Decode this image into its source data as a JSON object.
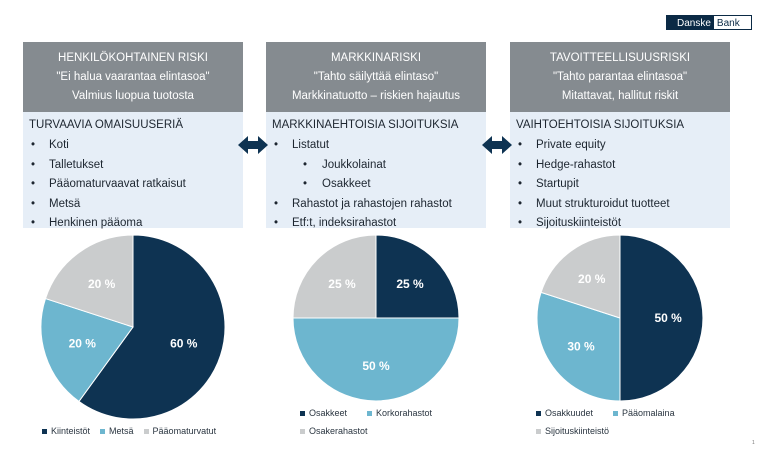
{
  "brand": {
    "name_part1": "Danske",
    "name_part2": "Bank"
  },
  "page_number": "1",
  "colors": {
    "navy": "#0e3352",
    "light_blue": "#6db6cf",
    "gray": "#cacccd",
    "header_gray": "#858b90",
    "box_bg": "#e6eef7"
  },
  "columns": [
    {
      "head": [
        "HENKILÖKOHTAINEN RISKI",
        "\"Ei halua vaarantaa elintasoa\"",
        "Valmius luopua tuotosta"
      ],
      "title": "TURVAAVIA OMAISUUSERIÄ",
      "items": [
        {
          "text": "Koti",
          "level": 1
        },
        {
          "text": "Talletukset",
          "level": 1
        },
        {
          "text": "Pääomaturvaavat ratkaisut",
          "level": 1
        },
        {
          "text": "Metsä",
          "level": 1
        },
        {
          "text": "Henkinen pääoma",
          "level": 1
        }
      ]
    },
    {
      "head": [
        "MARKKINARISKI",
        "\"Tahto säilyttää elintaso\"",
        "Markkinatuotto – riskien hajautus"
      ],
      "title": "MARKKINAEHTOISIA SIJOITUKSIA",
      "items": [
        {
          "text": "Listatut",
          "level": 1
        },
        {
          "text": "Joukkolainat",
          "level": 2
        },
        {
          "text": "Osakkeet",
          "level": 2
        },
        {
          "text": "Rahastot ja rahastojen rahastot",
          "level": 1
        },
        {
          "text": "Etf:t, indeksirahastot",
          "level": 1
        }
      ]
    },
    {
      "head": [
        "TAVOITTEELLISUUSRISKI",
        "\"Tahto parantaa elintasoa\"",
        "Mitattavat, hallitut riskit"
      ],
      "title": "VAIHTOEHTOISIA SIJOITUKSIA",
      "items": [
        {
          "text": "Private equity",
          "level": 1
        },
        {
          "text": "Hedge-rahastot",
          "level": 1
        },
        {
          "text": "Startupit",
          "level": 1
        },
        {
          "text": "Muut strukturoidut tuotteet",
          "level": 1
        },
        {
          "text": "Sijoituskiinteistöt",
          "level": 1
        }
      ]
    }
  ],
  "chart_data": [
    {
      "type": "pie",
      "slices": [
        {
          "label": "Kiinteistöt",
          "value": 60,
          "display": "60 %",
          "color": "#0e3352"
        },
        {
          "label": "Metsä",
          "value": 20,
          "display": "20 %",
          "color": "#6db6cf"
        },
        {
          "label": "Pääomaturvatut",
          "value": 20,
          "display": "20 %",
          "color": "#cacccd"
        }
      ]
    },
    {
      "type": "pie",
      "slices": [
        {
          "label": "Osakkeet",
          "value": 25,
          "display": "25 %",
          "color": "#0e3352"
        },
        {
          "label": "Korkorahastot",
          "value": 50,
          "display": "50 %",
          "color": "#6db6cf"
        },
        {
          "label": "Osakerahastot",
          "value": 25,
          "display": "25 %",
          "color": "#cacccd"
        }
      ]
    },
    {
      "type": "pie",
      "slices": [
        {
          "label": "Osakkuudet",
          "value": 50,
          "display": "50 %",
          "color": "#0e3352"
        },
        {
          "label": "Pääomalaina",
          "value": 30,
          "display": "30 %",
          "color": "#6db6cf"
        },
        {
          "label": "Sijoituskiinteistö",
          "value": 20,
          "display": "20 %",
          "color": "#cacccd"
        }
      ]
    }
  ]
}
